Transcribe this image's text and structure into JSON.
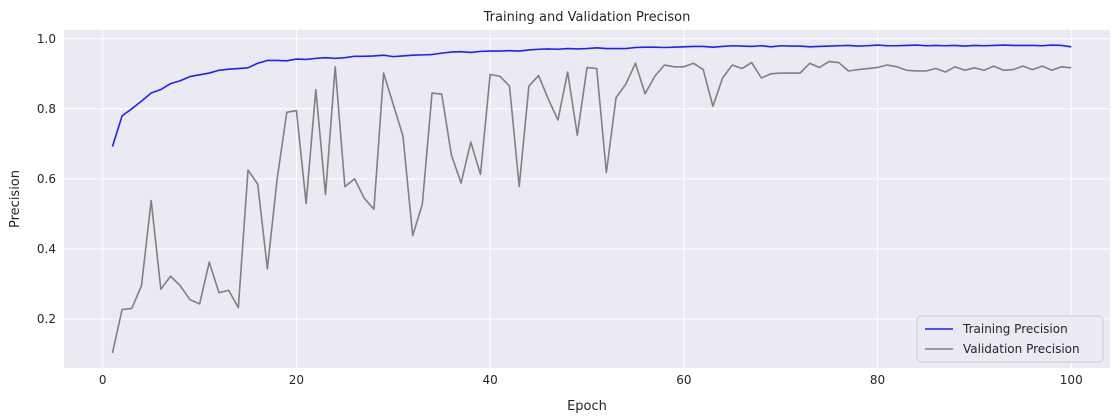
{
  "chart_data": {
    "type": "line",
    "title": "Training and Validation Precison",
    "xlabel": "Epoch",
    "ylabel": "Precision",
    "xlim": [
      -4,
      104
    ],
    "ylim": [
      0.06,
      1.025
    ],
    "xticks": [
      0,
      20,
      40,
      60,
      80,
      100
    ],
    "yticks": [
      0.2,
      0.4,
      0.6,
      0.8,
      1.0
    ],
    "grid": true,
    "legend_position": "bottom-right",
    "background": "#eaeaf2",
    "series": [
      {
        "name": "Training Precision",
        "color": "#2020ff",
        "x": [
          1,
          2,
          3,
          4,
          5,
          6,
          7,
          8,
          9,
          10,
          11,
          12,
          13,
          14,
          15,
          16,
          17,
          18,
          19,
          20,
          21,
          22,
          23,
          24,
          25,
          26,
          27,
          28,
          29,
          30,
          31,
          32,
          33,
          34,
          35,
          36,
          37,
          38,
          39,
          40,
          41,
          42,
          43,
          44,
          45,
          46,
          47,
          48,
          49,
          50,
          51,
          52,
          53,
          54,
          55,
          56,
          57,
          58,
          59,
          60,
          61,
          62,
          63,
          64,
          65,
          66,
          67,
          68,
          69,
          70,
          71,
          72,
          73,
          74,
          75,
          76,
          77,
          78,
          79,
          80,
          81,
          82,
          83,
          84,
          85,
          86,
          87,
          88,
          89,
          90,
          91,
          92,
          93,
          94,
          95,
          96,
          97,
          98,
          99,
          100
        ],
        "values": [
          0.692,
          0.78,
          0.8,
          0.822,
          0.845,
          0.855,
          0.872,
          0.88,
          0.892,
          0.897,
          0.902,
          0.91,
          0.913,
          0.915,
          0.917,
          0.93,
          0.938,
          0.938,
          0.937,
          0.942,
          0.941,
          0.944,
          0.946,
          0.944,
          0.946,
          0.95,
          0.95,
          0.951,
          0.953,
          0.949,
          0.951,
          0.953,
          0.954,
          0.955,
          0.959,
          0.962,
          0.963,
          0.961,
          0.964,
          0.965,
          0.965,
          0.966,
          0.965,
          0.968,
          0.97,
          0.971,
          0.97,
          0.972,
          0.971,
          0.972,
          0.974,
          0.972,
          0.972,
          0.972,
          0.975,
          0.976,
          0.976,
          0.975,
          0.976,
          0.977,
          0.978,
          0.978,
          0.976,
          0.978,
          0.98,
          0.979,
          0.978,
          0.98,
          0.977,
          0.98,
          0.979,
          0.979,
          0.977,
          0.978,
          0.979,
          0.98,
          0.981,
          0.979,
          0.98,
          0.982,
          0.98,
          0.98,
          0.981,
          0.982,
          0.98,
          0.981,
          0.98,
          0.981,
          0.979,
          0.981,
          0.98,
          0.981,
          0.982,
          0.981,
          0.981,
          0.981,
          0.98,
          0.982,
          0.981,
          0.977
        ]
      },
      {
        "name": "Validation Precision",
        "color": "#808080",
        "x": [
          1,
          2,
          3,
          4,
          5,
          6,
          7,
          8,
          9,
          10,
          11,
          12,
          13,
          14,
          15,
          16,
          17,
          18,
          19,
          20,
          21,
          22,
          23,
          24,
          25,
          26,
          27,
          28,
          29,
          30,
          31,
          32,
          33,
          34,
          35,
          36,
          37,
          38,
          39,
          40,
          41,
          42,
          43,
          44,
          45,
          46,
          47,
          48,
          49,
          50,
          51,
          52,
          53,
          54,
          55,
          56,
          57,
          58,
          59,
          60,
          61,
          62,
          63,
          64,
          65,
          66,
          67,
          68,
          69,
          70,
          71,
          72,
          73,
          74,
          75,
          76,
          77,
          78,
          79,
          80,
          81,
          82,
          83,
          84,
          85,
          86,
          87,
          88,
          89,
          90,
          91,
          92,
          93,
          94,
          95,
          96,
          97,
          98,
          99,
          100
        ],
        "values": [
          0.103,
          0.227,
          0.23,
          0.295,
          0.538,
          0.285,
          0.322,
          0.295,
          0.255,
          0.243,
          0.362,
          0.275,
          0.282,
          0.232,
          0.625,
          0.585,
          0.343,
          0.598,
          0.79,
          0.795,
          0.53,
          0.855,
          0.555,
          0.92,
          0.578,
          0.6,
          0.545,
          0.513,
          0.902,
          0.812,
          0.722,
          0.438,
          0.528,
          0.845,
          0.842,
          0.668,
          0.588,
          0.705,
          0.613,
          0.898,
          0.893,
          0.865,
          0.578,
          0.865,
          0.895,
          0.828,
          0.768,
          0.905,
          0.725,
          0.918,
          0.915,
          0.618,
          0.832,
          0.87,
          0.93,
          0.843,
          0.893,
          0.925,
          0.92,
          0.92,
          0.93,
          0.912,
          0.807,
          0.888,
          0.925,
          0.915,
          0.932,
          0.888,
          0.9,
          0.902,
          0.902,
          0.902,
          0.93,
          0.918,
          0.935,
          0.932,
          0.908,
          0.912,
          0.915,
          0.918,
          0.925,
          0.92,
          0.91,
          0.908,
          0.908,
          0.915,
          0.905,
          0.92,
          0.91,
          0.917,
          0.91,
          0.922,
          0.91,
          0.912,
          0.922,
          0.912,
          0.922,
          0.91,
          0.92,
          0.917
        ]
      }
    ]
  }
}
